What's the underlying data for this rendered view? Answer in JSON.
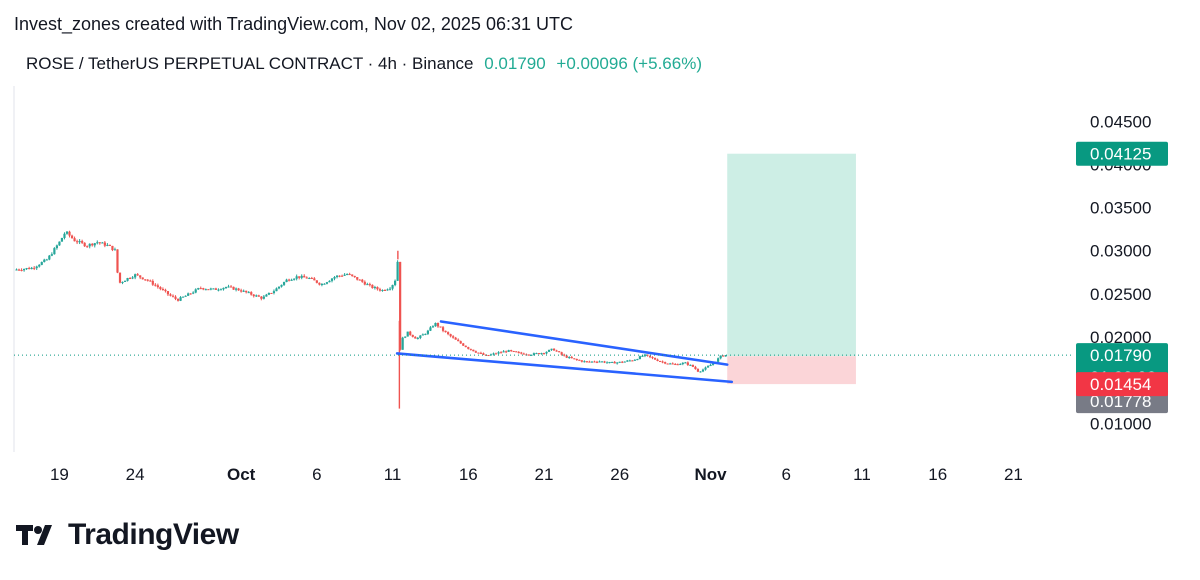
{
  "caption": "Invest_zones created with TradingView.com, Nov 02, 2025 06:31 UTC",
  "header": {
    "symbol": "ROSE / TetherUS PERPETUAL CONTRACT · 4h · Binance",
    "price": "0.01790",
    "change": "+0.00096 (+5.66%)"
  },
  "brand": {
    "name": "TradingView"
  },
  "colors": {
    "up": "#26a69a",
    "down": "#ef5350",
    "trendline": "#2962ff",
    "target_zone": "#cdeee5",
    "stop_zone": "#fbd5d8",
    "badge_green": "#089981",
    "badge_gray": "#787b86",
    "badge_red": "#f23645",
    "price_line": "#089981"
  },
  "badges": {
    "target": "0.04125",
    "last": "0.01790",
    "countdown": "01:28:02",
    "entry": "0.01778",
    "stop": "0.01454"
  },
  "chart_data": {
    "type": "candlestick",
    "title": "ROSE / TetherUS PERPETUAL CONTRACT · 4h · Binance",
    "x_ticks": [
      {
        "label": "19",
        "day": 0,
        "bold": false
      },
      {
        "label": "24",
        "day": 5,
        "bold": false
      },
      {
        "label": "Oct",
        "day": 12,
        "bold": true
      },
      {
        "label": "6",
        "day": 17,
        "bold": false
      },
      {
        "label": "11",
        "day": 22,
        "bold": false
      },
      {
        "label": "16",
        "day": 27,
        "bold": false
      },
      {
        "label": "21",
        "day": 32,
        "bold": false
      },
      {
        "label": "26",
        "day": 37,
        "bold": false
      },
      {
        "label": "Nov",
        "day": 43,
        "bold": true
      },
      {
        "label": "6",
        "day": 48,
        "bold": false
      },
      {
        "label": "11",
        "day": 53,
        "bold": false
      },
      {
        "label": "16",
        "day": 58,
        "bold": false
      },
      {
        "label": "21",
        "day": 63,
        "bold": false
      }
    ],
    "y_ticks": [
      0.045,
      0.04,
      0.035,
      0.03,
      0.025,
      0.02,
      0.015,
      0.01
    ],
    "y_tick_labels": [
      "0.04500",
      "0.04000",
      "0.03500",
      "0.03000",
      "0.02500",
      "0.02000",
      "0.01500",
      "0.01000"
    ],
    "ylim": [
      0.0069,
      0.0491
    ],
    "xlim": [
      -3,
      67
    ],
    "price_path": [
      [
        -3,
        0.0278
      ],
      [
        -1.8,
        0.028
      ],
      [
        -0.8,
        0.029
      ],
      [
        0,
        0.031
      ],
      [
        0.4,
        0.0322
      ],
      [
        1,
        0.0312
      ],
      [
        1.8,
        0.0306
      ],
      [
        2.5,
        0.031
      ],
      [
        3.2,
        0.0306
      ],
      [
        3.7,
        0.03
      ],
      [
        3.9,
        0.0262
      ],
      [
        4.5,
        0.0268
      ],
      [
        5,
        0.0272
      ],
      [
        5.8,
        0.0266
      ],
      [
        6.5,
        0.0258
      ],
      [
        7.3,
        0.0248
      ],
      [
        7.8,
        0.0243
      ],
      [
        8.6,
        0.025
      ],
      [
        9.3,
        0.0257
      ],
      [
        10.2,
        0.0255
      ],
      [
        11,
        0.0258
      ],
      [
        11.8,
        0.0255
      ],
      [
        12.6,
        0.025
      ],
      [
        13.4,
        0.0245
      ],
      [
        14.2,
        0.0254
      ],
      [
        15,
        0.0266
      ],
      [
        15.7,
        0.027
      ],
      [
        16.5,
        0.0268
      ],
      [
        17.3,
        0.0261
      ],
      [
        18.2,
        0.027
      ],
      [
        19,
        0.0273
      ],
      [
        19.8,
        0.0266
      ],
      [
        20.6,
        0.0258
      ],
      [
        21.3,
        0.0254
      ],
      [
        21.9,
        0.0258
      ],
      [
        22.2,
        0.0267
      ],
      [
        22.35,
        0.029
      ],
      [
        22.4,
        0.028
      ],
      [
        22.48,
        0.0182
      ],
      [
        22.55,
        0.0196
      ],
      [
        23,
        0.0205
      ],
      [
        23.6,
        0.0198
      ],
      [
        24.3,
        0.0206
      ],
      [
        24.8,
        0.0216
      ],
      [
        25.5,
        0.0205
      ],
      [
        26.2,
        0.0196
      ],
      [
        27,
        0.0187
      ],
      [
        27.6,
        0.0182
      ],
      [
        28.2,
        0.0178
      ],
      [
        28.8,
        0.0181
      ],
      [
        29.6,
        0.0184
      ],
      [
        30.4,
        0.0181
      ],
      [
        31.2,
        0.018
      ],
      [
        32,
        0.0182
      ],
      [
        32.6,
        0.0186
      ],
      [
        33.3,
        0.0178
      ],
      [
        34,
        0.0174
      ],
      [
        34.8,
        0.0171
      ],
      [
        35.6,
        0.0172
      ],
      [
        36.4,
        0.017
      ],
      [
        37.2,
        0.0171
      ],
      [
        38,
        0.0174
      ],
      [
        38.6,
        0.0179
      ],
      [
        39.2,
        0.0175
      ],
      [
        39.8,
        0.0171
      ],
      [
        40.6,
        0.0168
      ],
      [
        41.3,
        0.017
      ],
      [
        41.8,
        0.0166
      ],
      [
        42.2,
        0.016
      ],
      [
        42.6,
        0.0163
      ],
      [
        43.2,
        0.017
      ],
      [
        43.7,
        0.0178
      ],
      [
        44,
        0.0179
      ]
    ],
    "wick_extremes": [
      {
        "day": 22.35,
        "high": 0.03
      },
      {
        "day": 22.45,
        "low": 0.0117
      }
    ],
    "falling_wedge": {
      "upper_line": [
        [
          25.2,
          0.0218
        ],
        [
          44.1,
          0.0168
        ]
      ],
      "lower_line": [
        [
          22.3,
          0.0181
        ],
        [
          44.4,
          0.0148
        ]
      ]
    },
    "long_position": {
      "start_day": 44.1,
      "end_day": 52.6,
      "target": 0.04125,
      "entry": 0.01778,
      "stop": 0.01454
    },
    "last_price": 0.0179
  }
}
